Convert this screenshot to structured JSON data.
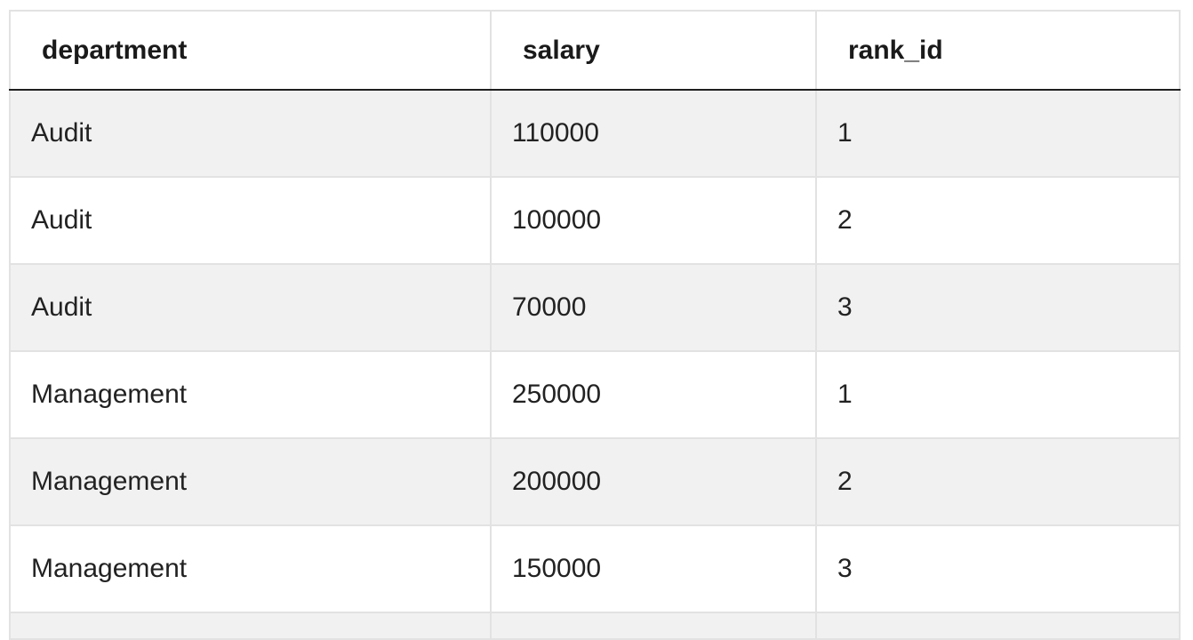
{
  "table": {
    "columns": [
      "department",
      "salary",
      "rank_id"
    ],
    "rows": [
      [
        "Audit",
        "110000",
        "1"
      ],
      [
        "Audit",
        "100000",
        "2"
      ],
      [
        "Audit",
        "70000",
        "3"
      ],
      [
        "Management",
        "250000",
        "1"
      ],
      [
        "Management",
        "200000",
        "2"
      ],
      [
        "Management",
        "150000",
        "3"
      ]
    ]
  }
}
